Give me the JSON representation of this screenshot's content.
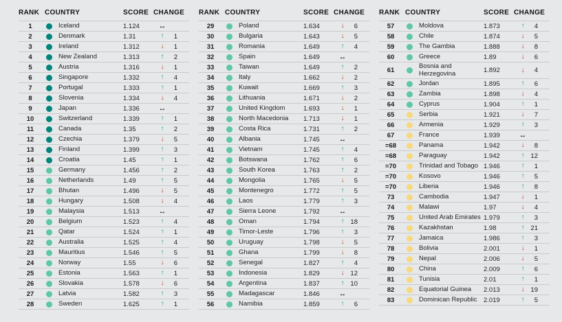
{
  "page": {
    "background_color": "#e7e8ea",
    "separator_color": "#c9cacc"
  },
  "headers": {
    "rank": "RANK",
    "country": "COUNTRY",
    "score": "SCORE",
    "change": "CHANGE"
  },
  "tier_colors": {
    "very_high": "#00857b",
    "high": "#5ec7a4",
    "medium": "#f6d97c"
  },
  "change_colors": {
    "up": "#27988c",
    "down": "#c23b2e",
    "same": "#161616"
  },
  "change_glyphs": {
    "up": "↑",
    "down": "↓",
    "same": "↔"
  },
  "columns": [
    [
      {
        "rank": "1",
        "country": "Iceland",
        "score": "1.124",
        "tier": "very_high",
        "dir": "same",
        "delta": ""
      },
      {
        "rank": "2",
        "country": "Denmark",
        "score": "1.31",
        "tier": "very_high",
        "dir": "up",
        "delta": "1"
      },
      {
        "rank": "3",
        "country": "Ireland",
        "score": "1.312",
        "tier": "very_high",
        "dir": "down",
        "delta": "1"
      },
      {
        "rank": "4",
        "country": "New Zealand",
        "score": "1.313",
        "tier": "very_high",
        "dir": "up",
        "delta": "2"
      },
      {
        "rank": "5",
        "country": "Austria",
        "score": "1.316",
        "tier": "very_high",
        "dir": "down",
        "delta": "1"
      },
      {
        "rank": "6",
        "country": "Singapore",
        "score": "1.332",
        "tier": "very_high",
        "dir": "up",
        "delta": "4"
      },
      {
        "rank": "7",
        "country": "Portugal",
        "score": "1.333",
        "tier": "very_high",
        "dir": "up",
        "delta": "1"
      },
      {
        "rank": "8",
        "country": "Slovenia",
        "score": "1.334",
        "tier": "very_high",
        "dir": "down",
        "delta": "4"
      },
      {
        "rank": "9",
        "country": "Japan",
        "score": "1.336",
        "tier": "very_high",
        "dir": "same",
        "delta": ""
      },
      {
        "rank": "10",
        "country": "Switzerland",
        "score": "1.339",
        "tier": "very_high",
        "dir": "up",
        "delta": "1"
      },
      {
        "rank": "11",
        "country": "Canada",
        "score": "1.35",
        "tier": "very_high",
        "dir": "up",
        "delta": "2"
      },
      {
        "rank": "12",
        "country": "Czechia",
        "score": "1.379",
        "tier": "very_high",
        "dir": "down",
        "delta": "5"
      },
      {
        "rank": "13",
        "country": "Finland",
        "score": "1.399",
        "tier": "very_high",
        "dir": "up",
        "delta": "3"
      },
      {
        "rank": "14",
        "country": "Croatia",
        "score": "1.45",
        "tier": "very_high",
        "dir": "up",
        "delta": "1"
      },
      {
        "rank": "15",
        "country": "Germany",
        "score": "1.456",
        "tier": "high",
        "dir": "up",
        "delta": "2"
      },
      {
        "rank": "16",
        "country": "Netherlands",
        "score": "1.49",
        "tier": "high",
        "dir": "up",
        "delta": "5"
      },
      {
        "rank": "17",
        "country": "Bhutan",
        "score": "1.496",
        "tier": "high",
        "dir": "down",
        "delta": "5"
      },
      {
        "rank": "18",
        "country": "Hungary",
        "score": "1.508",
        "tier": "high",
        "dir": "down",
        "delta": "4"
      },
      {
        "rank": "19",
        "country": "Malaysia",
        "score": "1.513",
        "tier": "high",
        "dir": "same",
        "delta": ""
      },
      {
        "rank": "20",
        "country": "Belgium",
        "score": "1.523",
        "tier": "high",
        "dir": "up",
        "delta": "4"
      },
      {
        "rank": "21",
        "country": "Qatar",
        "score": "1.524",
        "tier": "high",
        "dir": "up",
        "delta": "1"
      },
      {
        "rank": "22",
        "country": "Australia",
        "score": "1.525",
        "tier": "high",
        "dir": "up",
        "delta": "4"
      },
      {
        "rank": "23",
        "country": "Mauritius",
        "score": "1.546",
        "tier": "high",
        "dir": "up",
        "delta": "5"
      },
      {
        "rank": "24",
        "country": "Norway",
        "score": "1.55",
        "tier": "high",
        "dir": "down",
        "delta": "6"
      },
      {
        "rank": "25",
        "country": "Estonia",
        "score": "1.563",
        "tier": "high",
        "dir": "up",
        "delta": "1"
      },
      {
        "rank": "26",
        "country": "Slovakia",
        "score": "1.578",
        "tier": "high",
        "dir": "down",
        "delta": "6"
      },
      {
        "rank": "27",
        "country": "Latvia",
        "score": "1.582",
        "tier": "high",
        "dir": "up",
        "delta": "3"
      },
      {
        "rank": "28",
        "country": "Sweden",
        "score": "1.625",
        "tier": "high",
        "dir": "up",
        "delta": "1"
      }
    ],
    [
      {
        "rank": "29",
        "country": "Poland",
        "score": "1.634",
        "tier": "high",
        "dir": "down",
        "delta": "6"
      },
      {
        "rank": "30",
        "country": "Bulgaria",
        "score": "1.643",
        "tier": "high",
        "dir": "down",
        "delta": "5"
      },
      {
        "rank": "31",
        "country": "Romania",
        "score": "1.649",
        "tier": "high",
        "dir": "up",
        "delta": "4"
      },
      {
        "rank": "32",
        "country": "Spain",
        "score": "1.649",
        "tier": "high",
        "dir": "same",
        "delta": ""
      },
      {
        "rank": "33",
        "country": "Taiwan",
        "score": "1.649",
        "tier": "high",
        "dir": "up",
        "delta": "2"
      },
      {
        "rank": "34",
        "country": "Italy",
        "score": "1.662",
        "tier": "high",
        "dir": "down",
        "delta": "2"
      },
      {
        "rank": "35",
        "country": "Kuwait",
        "score": "1.669",
        "tier": "high",
        "dir": "up",
        "delta": "3"
      },
      {
        "rank": "36",
        "country": "Lithuania",
        "score": "1.671",
        "tier": "high",
        "dir": "down",
        "delta": "2"
      },
      {
        "rank": "37",
        "country": "United Kingdom",
        "score": "1.693",
        "tier": "high",
        "dir": "down",
        "delta": "1"
      },
      {
        "rank": "38",
        "country": "North Macedonia",
        "score": "1.713",
        "tier": "high",
        "dir": "down",
        "delta": "1"
      },
      {
        "rank": "39",
        "country": "Costa Rica",
        "score": "1.731",
        "tier": "high",
        "dir": "up",
        "delta": "2"
      },
      {
        "rank": "40",
        "country": "Albania",
        "score": "1.745",
        "tier": "high",
        "dir": "same",
        "delta": ""
      },
      {
        "rank": "41",
        "country": "Vietnam",
        "score": "1.745",
        "tier": "high",
        "dir": "up",
        "delta": "4"
      },
      {
        "rank": "42",
        "country": "Botswana",
        "score": "1.762",
        "tier": "high",
        "dir": "up",
        "delta": "6"
      },
      {
        "rank": "43",
        "country": "South Korea",
        "score": "1.763",
        "tier": "high",
        "dir": "up",
        "delta": "2"
      },
      {
        "rank": "44",
        "country": "Mongolia",
        "score": "1.765",
        "tier": "high",
        "dir": "down",
        "delta": "5"
      },
      {
        "rank": "45",
        "country": "Montenegro",
        "score": "1.772",
        "tier": "high",
        "dir": "up",
        "delta": "5"
      },
      {
        "rank": "46",
        "country": "Laos",
        "score": "1.779",
        "tier": "high",
        "dir": "up",
        "delta": "3"
      },
      {
        "rank": "47",
        "country": "Sierra Leone",
        "score": "1.792",
        "tier": "high",
        "dir": "same",
        "delta": ""
      },
      {
        "rank": "48",
        "country": "Oman",
        "score": "1.794",
        "tier": "high",
        "dir": "up",
        "delta": "18"
      },
      {
        "rank": "49",
        "country": "Timor-Leste",
        "score": "1.796",
        "tier": "high",
        "dir": "up",
        "delta": "3"
      },
      {
        "rank": "50",
        "country": "Uruguay",
        "score": "1.798",
        "tier": "high",
        "dir": "down",
        "delta": "5"
      },
      {
        "rank": "51",
        "country": "Ghana",
        "score": "1.799",
        "tier": "high",
        "dir": "down",
        "delta": "8"
      },
      {
        "rank": "52",
        "country": "Senegal",
        "score": "1.827",
        "tier": "high",
        "dir": "up",
        "delta": "4"
      },
      {
        "rank": "53",
        "country": "Indonesia",
        "score": "1.829",
        "tier": "high",
        "dir": "down",
        "delta": "12"
      },
      {
        "rank": "54",
        "country": "Argentina",
        "score": "1.837",
        "tier": "high",
        "dir": "up",
        "delta": "10"
      },
      {
        "rank": "55",
        "country": "Madagascar",
        "score": "1.846",
        "tier": "high",
        "dir": "same",
        "delta": ""
      },
      {
        "rank": "56",
        "country": "Namibia",
        "score": "1.859",
        "tier": "high",
        "dir": "up",
        "delta": "6"
      }
    ],
    [
      {
        "rank": "57",
        "country": "Moldova",
        "score": "1.873",
        "tier": "high",
        "dir": "up",
        "delta": "4"
      },
      {
        "rank": "58",
        "country": "Chile",
        "score": "1.874",
        "tier": "high",
        "dir": "down",
        "delta": "5"
      },
      {
        "rank": "59",
        "country": "The Gambia",
        "score": "1.888",
        "tier": "high",
        "dir": "down",
        "delta": "8"
      },
      {
        "rank": "60",
        "country": "Greece",
        "score": "1.89",
        "tier": "high",
        "dir": "down",
        "delta": "6"
      },
      {
        "rank": "61",
        "country": "Bosnia and Herzegovina",
        "score": "1.892",
        "tier": "high",
        "dir": "down",
        "delta": "4"
      },
      {
        "rank": "62",
        "country": "Jordan",
        "score": "1.895",
        "tier": "high",
        "dir": "up",
        "delta": "6"
      },
      {
        "rank": "63",
        "country": "Zambia",
        "score": "1.898",
        "tier": "high",
        "dir": "down",
        "delta": "4"
      },
      {
        "rank": "64",
        "country": "Cyprus",
        "score": "1.904",
        "tier": "high",
        "dir": "up",
        "delta": "1"
      },
      {
        "rank": "65",
        "country": "Serbia",
        "score": "1.921",
        "tier": "medium",
        "dir": "down",
        "delta": "7"
      },
      {
        "rank": "66",
        "country": "Armenia",
        "score": "1.929",
        "tier": "medium",
        "dir": "up",
        "delta": "3"
      },
      {
        "rank": "67",
        "country": "France",
        "score": "1.939",
        "tier": "medium",
        "dir": "same",
        "delta": ""
      },
      {
        "rank": "=68",
        "country": "Panama",
        "score": "1.942",
        "tier": "medium",
        "dir": "down",
        "delta": "8"
      },
      {
        "rank": "=68",
        "country": "Paraguay",
        "score": "1.942",
        "tier": "medium",
        "dir": "up",
        "delta": "12"
      },
      {
        "rank": "=70",
        "country": "Trinidad and Tobago",
        "score": "1.946",
        "tier": "medium",
        "dir": "up",
        "delta": "1"
      },
      {
        "rank": "=70",
        "country": "Kosovo",
        "score": "1.946",
        "tier": "medium",
        "dir": "up",
        "delta": "5"
      },
      {
        "rank": "=70",
        "country": "Liberia",
        "score": "1.946",
        "tier": "medium",
        "dir": "up",
        "delta": "8"
      },
      {
        "rank": "73",
        "country": "Cambodia",
        "score": "1.947",
        "tier": "medium",
        "dir": "down",
        "delta": "1"
      },
      {
        "rank": "74",
        "country": "Malawi",
        "score": "1.97",
        "tier": "medium",
        "dir": "down",
        "delta": "4"
      },
      {
        "rank": "75",
        "country": "United Arab Emirates",
        "score": "1.979",
        "tier": "medium",
        "dir": "up",
        "delta": "3"
      },
      {
        "rank": "76",
        "country": "Kazakhstan",
        "score": "1.98",
        "tier": "medium",
        "dir": "up",
        "delta": "21"
      },
      {
        "rank": "77",
        "country": "Jamaica",
        "score": "1.986",
        "tier": "medium",
        "dir": "up",
        "delta": "3"
      },
      {
        "rank": "78",
        "country": "Bolivia",
        "score": "2.001",
        "tier": "medium",
        "dir": "down",
        "delta": "1"
      },
      {
        "rank": "79",
        "country": "Nepal",
        "score": "2.006",
        "tier": "medium",
        "dir": "down",
        "delta": "5"
      },
      {
        "rank": "80",
        "country": "China",
        "score": "2.009",
        "tier": "medium",
        "dir": "up",
        "delta": "6"
      },
      {
        "rank": "81",
        "country": "Tunisia",
        "score": "2.01",
        "tier": "medium",
        "dir": "up",
        "delta": "1"
      },
      {
        "rank": "82",
        "country": "Equatorial Guinea",
        "score": "2.013",
        "tier": "medium",
        "dir": "down",
        "delta": "19"
      },
      {
        "rank": "83",
        "country": "Dominican Republic",
        "score": "2.019",
        "tier": "medium",
        "dir": "up",
        "delta": "5"
      }
    ]
  ]
}
